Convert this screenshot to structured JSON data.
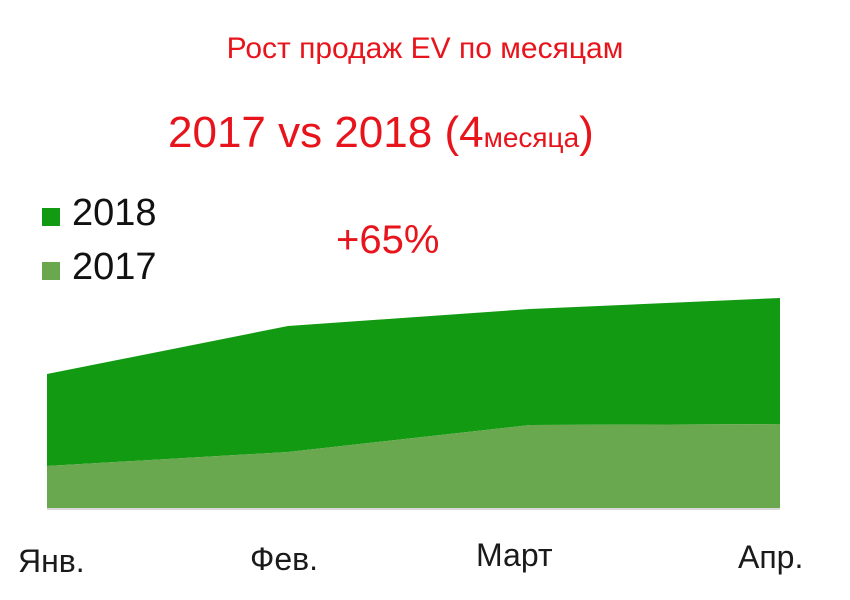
{
  "chart_data": {
    "type": "area",
    "stacked": true,
    "title": "Рост продаж EV по месяцам",
    "subtitle_main": "2017 vs 2018 (4",
    "subtitle_small": "месяца",
    "subtitle_end": ")",
    "annotation": "+65%",
    "categories": [
      "Янв.",
      "Фев.",
      "Март",
      "Апр."
    ],
    "series": [
      {
        "name": "2017",
        "values": [
          42,
          56,
          83,
          84
        ],
        "color": "#6aa84f"
      },
      {
        "name": "2018",
        "values": [
          92,
          126,
          116,
          126
        ],
        "color": "#129a12"
      }
    ],
    "ylim": [
      0,
      210
    ],
    "grid": false,
    "legend": "top-left"
  }
}
